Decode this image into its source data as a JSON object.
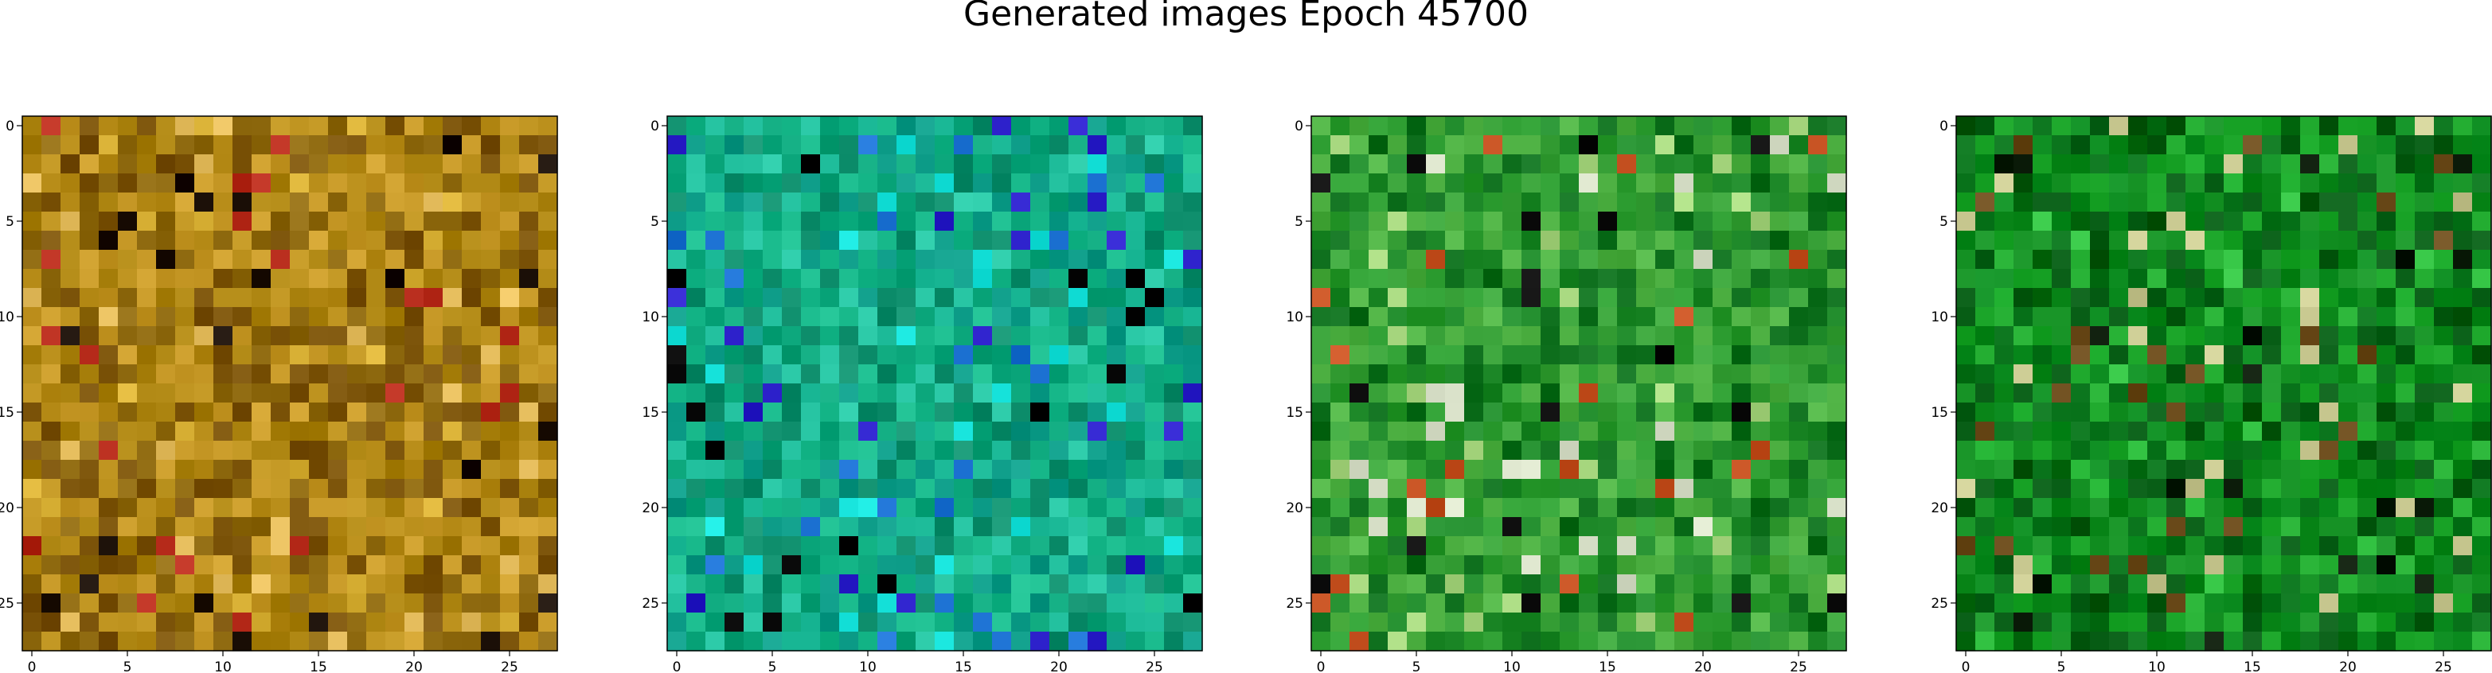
{
  "title": "Generated images Epoch 45700",
  "chart_data": {
    "type": "heatmap",
    "title": "Generated images Epoch 45700",
    "grid_size": 28,
    "images": [
      {
        "panel": 1,
        "dominant_colors": [
          "#a9810d",
          "#b98e1a",
          "#8f6a10",
          "#c89a28",
          "#7a5208"
        ],
        "highlight_colors": [
          "#d8b035",
          "#e8c060",
          "#b52a1a",
          "#1a0e06"
        ],
        "xticks": [
          0,
          5,
          10,
          15,
          20,
          25
        ],
        "yticks": [
          0,
          5,
          10,
          15,
          20,
          25
        ]
      },
      {
        "panel": 2,
        "dominant_colors": [
          "#0aa57a",
          "#17b88a",
          "#0f8f6d",
          "#24c2a0",
          "#0b9a86"
        ],
        "highlight_colors": [
          "#14e0d8",
          "#1a6fd0",
          "#2a1ec8",
          "#000000"
        ],
        "xticks": [
          0,
          5,
          10,
          15,
          20,
          25
        ],
        "yticks": [
          0,
          5,
          10,
          15,
          20,
          25
        ]
      },
      {
        "panel": 3,
        "dominant_colors": [
          "#2a9a2e",
          "#1f8a2a",
          "#3aa33a",
          "#4db042",
          "#0d6e1c"
        ],
        "highlight_colors": [
          "#d8e0c8",
          "#a8d880",
          "#c45020",
          "#0a0a0a"
        ],
        "xticks": [
          0,
          5,
          10,
          15,
          20,
          25
        ],
        "yticks": [
          0,
          5,
          10,
          15,
          20,
          25
        ]
      },
      {
        "panel": 4,
        "dominant_colors": [
          "#0a8a1e",
          "#138f22",
          "#067018",
          "#1ea82c",
          "#045a12"
        ],
        "highlight_colors": [
          "#30c040",
          "#c8c890",
          "#0a1a08",
          "#6a4a1a"
        ],
        "xticks": [
          0,
          5,
          10,
          15,
          20,
          25
        ],
        "yticks": [
          0,
          5,
          10,
          15,
          20,
          25
        ]
      }
    ]
  }
}
